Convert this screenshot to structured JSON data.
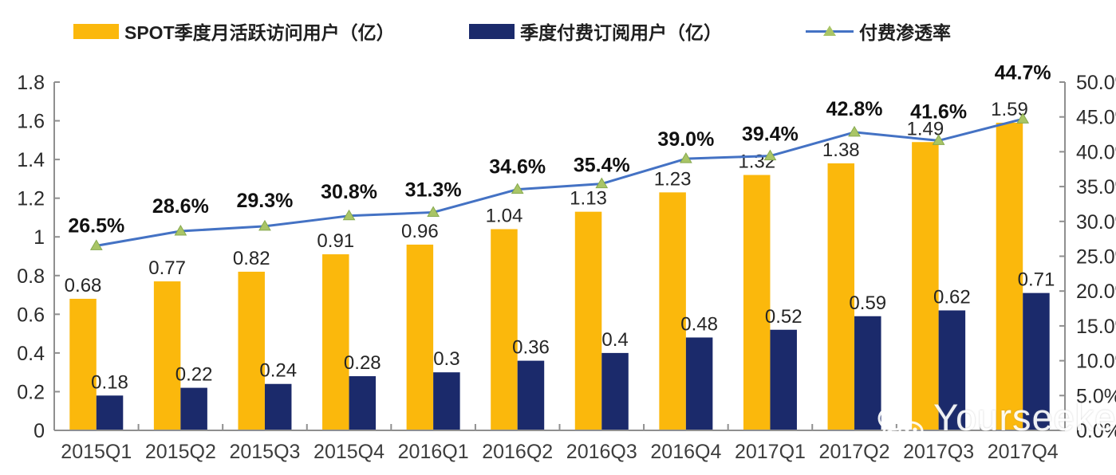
{
  "watermark": {
    "text": "Yourseeker",
    "icon": "wechat-icon"
  },
  "chart_data": {
    "type": "combo-bar-line",
    "title": "",
    "categories": [
      "2015Q1",
      "2015Q2",
      "2015Q3",
      "2015Q4",
      "2016Q1",
      "2016Q2",
      "2016Q3",
      "2016Q4",
      "2017Q1",
      "2017Q2",
      "2017Q3",
      "2017Q4"
    ],
    "series": [
      {
        "name": "SPOT季度月活跃访问用户（亿）",
        "type": "bar",
        "axis": "left",
        "color": "#FBB80C",
        "values": [
          0.68,
          0.77,
          0.82,
          0.91,
          0.96,
          1.04,
          1.13,
          1.23,
          1.32,
          1.38,
          1.49,
          1.59
        ],
        "labels": [
          "0.68",
          "0.77",
          "0.82",
          "0.91",
          "0.96",
          "1.04",
          "1.13",
          "1.23",
          "1.32",
          "1.38",
          "1.49",
          "1.59"
        ]
      },
      {
        "name": "季度付费订阅用户（亿）",
        "type": "bar",
        "axis": "left",
        "color": "#1B2A6B",
        "values": [
          0.18,
          0.22,
          0.24,
          0.28,
          0.3,
          0.36,
          0.4,
          0.48,
          0.52,
          0.59,
          0.62,
          0.71
        ],
        "labels": [
          "0.18",
          "0.22",
          "0.24",
          "0.28",
          "0.3",
          "0.36",
          "0.4",
          "0.48",
          "0.52",
          "0.59",
          "0.62",
          "0.71"
        ]
      },
      {
        "name": "付费渗透率",
        "type": "line",
        "axis": "right",
        "color": "#4472C4",
        "marker_color": "#A9C566",
        "values": [
          26.5,
          28.6,
          29.3,
          30.8,
          31.3,
          34.6,
          35.4,
          39.0,
          39.4,
          42.8,
          41.6,
          44.7
        ],
        "labels": [
          "26.5%",
          "28.6%",
          "29.3%",
          "30.8%",
          "31.3%",
          "34.6%",
          "35.4%",
          "39.0%",
          "39.4%",
          "42.8%",
          "41.6%",
          "44.7%"
        ]
      }
    ],
    "left_axis": {
      "min": 0,
      "max": 1.8,
      "step": 0.2,
      "tick_labels": [
        "0",
        "0.2",
        "0.4",
        "0.6",
        "0.8",
        "1",
        "1.2",
        "1.4",
        "1.6",
        "1.8"
      ]
    },
    "right_axis": {
      "min": 0,
      "max": 50,
      "step": 5,
      "tick_labels": [
        "0.0%",
        "5.0%",
        "10.0%",
        "15.0%",
        "20.0%",
        "25.0%",
        "30.0%",
        "35.0%",
        "40.0%",
        "45.0%",
        "50.0%"
      ]
    },
    "grid": false,
    "legend_position": "top"
  }
}
